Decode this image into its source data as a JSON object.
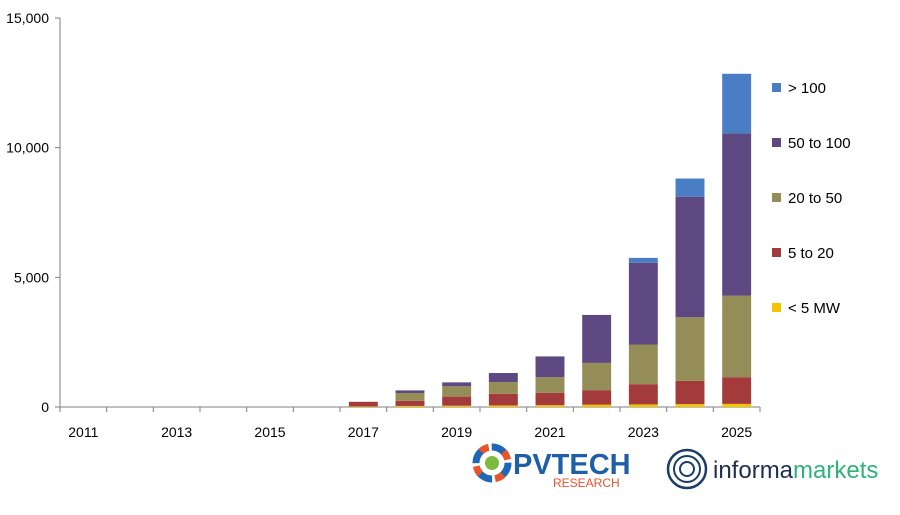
{
  "chart_data": {
    "type": "bar",
    "stacked": true,
    "title": "",
    "xlabel": "",
    "ylabel": "",
    "ylim": [
      0,
      15000
    ],
    "y_ticks": [
      "0",
      "5,000",
      "10,000",
      "15,000"
    ],
    "y_tick_values": [
      0,
      5000,
      10000,
      15000
    ],
    "categories": [
      "2011",
      "2012",
      "2013",
      "2014",
      "2015",
      "2016",
      "2017",
      "2018",
      "2019",
      "2020",
      "2021",
      "2022",
      "2023",
      "2024",
      "2025"
    ],
    "x_tick_labels": [
      "2011",
      "2013",
      "2015",
      "2017",
      "2019",
      "2021",
      "2023",
      "2025"
    ],
    "grid": false,
    "legend_position": "right",
    "series": [
      {
        "name": "< 5 MW",
        "color": "#F5C400",
        "values": [
          0,
          0,
          0,
          0,
          0,
          0,
          20,
          40,
          50,
          60,
          70,
          90,
          100,
          110,
          120
        ]
      },
      {
        "name": "5 to 20",
        "color": "#A33B3B",
        "values": [
          0,
          0,
          0,
          0,
          0,
          0,
          180,
          200,
          350,
          450,
          480,
          560,
          780,
          900,
          1030
        ]
      },
      {
        "name": "20 to 50",
        "color": "#958D57",
        "values": [
          0,
          0,
          0,
          0,
          0,
          0,
          0,
          300,
          400,
          450,
          600,
          1050,
          1530,
          2450,
          3150
        ]
      },
      {
        "name": "50 to 100",
        "color": "#5D4882",
        "values": [
          0,
          0,
          0,
          0,
          0,
          0,
          0,
          100,
          150,
          350,
          800,
          1850,
          3150,
          4650,
          6250
        ]
      },
      {
        "name": "> 100",
        "color": "#4A7EC4",
        "values": [
          0,
          0,
          0,
          0,
          0,
          0,
          0,
          0,
          0,
          0,
          0,
          0,
          190,
          700,
          2300
        ]
      }
    ]
  },
  "logos": {
    "pvtech_main": "PVTECH",
    "pvtech_sub": "RESEARCH",
    "informa_bold": "informa",
    "informa_light": "markets"
  }
}
